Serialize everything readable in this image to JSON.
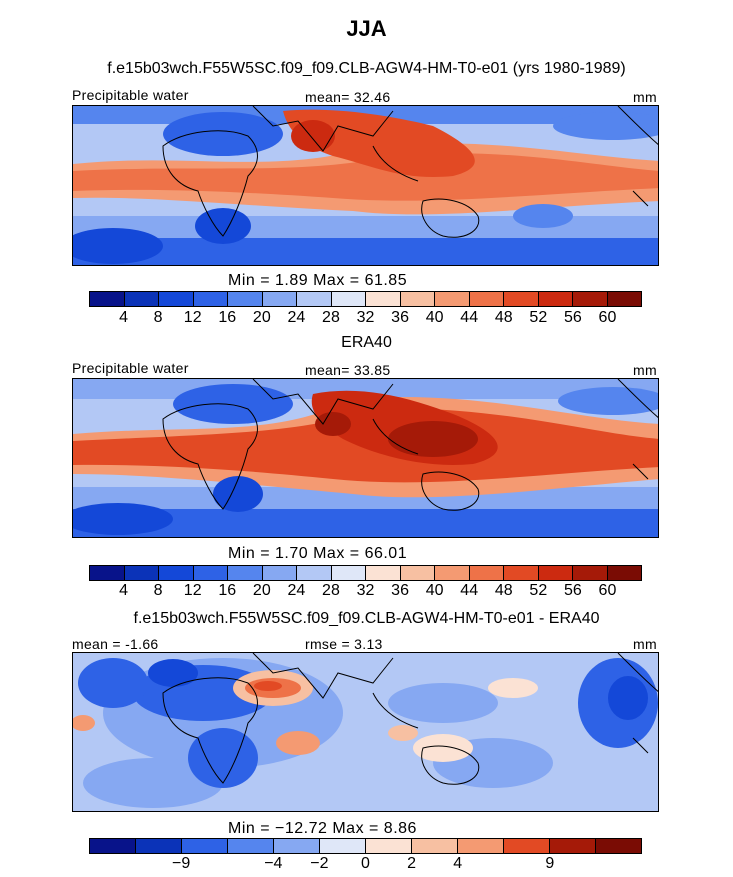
{
  "title": "JJA",
  "panels": [
    {
      "title": "f.e15b03wch.F55W5SC.f09_f09.CLB-AGW4-HM-T0-e01 (yrs 1980-1989)",
      "left_label": "Precipitable water",
      "center_label": "mean=  32.46",
      "right_label": "mm",
      "minmax": "Min =    1.89  Max =   61.85",
      "colorbar_ticks": [
        "4",
        "8",
        "12",
        "16",
        "20",
        "24",
        "28",
        "32",
        "36",
        "40",
        "44",
        "48",
        "52",
        "56",
        "60"
      ]
    },
    {
      "title": "ERA40",
      "left_label": "Precipitable water",
      "center_label": "mean=  33.85",
      "right_label": "mm",
      "minmax": "Min =    1.70  Max =   66.01",
      "colorbar_ticks": [
        "4",
        "8",
        "12",
        "16",
        "20",
        "24",
        "28",
        "32",
        "36",
        "40",
        "44",
        "48",
        "52",
        "56",
        "60"
      ]
    },
    {
      "title": "f.e15b03wch.F55W5SC.f09_f09.CLB-AGW4-HM-T0-e01 - ERA40",
      "left_label": "mean = -1.66",
      "center_label": "rmse =   3.13",
      "right_label": "mm",
      "minmax": "Min = −12.72  Max =    8.86",
      "colorbar_ticks": [
        "−9",
        "−4",
        "−2",
        "0",
        "2",
        "4",
        "9"
      ]
    }
  ],
  "colors": {
    "colorbar_16": [
      "#08138a",
      "#0b33b8",
      "#1448d8",
      "#2e62e6",
      "#5585ee",
      "#86a8f2",
      "#b3c8f5",
      "#dfe7f8",
      "#fbe2d4",
      "#f7c0a2",
      "#f49a72",
      "#ee7248",
      "#e24a24",
      "#cc2a10",
      "#a51a08",
      "#7a0c04"
    ],
    "colorbar_12": [
      "#08138a",
      "#0b33b8",
      "#2e62e6",
      "#5585ee",
      "#86a8f2",
      "#dfe7f8",
      "#fbe2d4",
      "#f7c0a2",
      "#f49a72",
      "#e24a24",
      "#a51a08",
      "#7a0c04"
    ]
  }
}
